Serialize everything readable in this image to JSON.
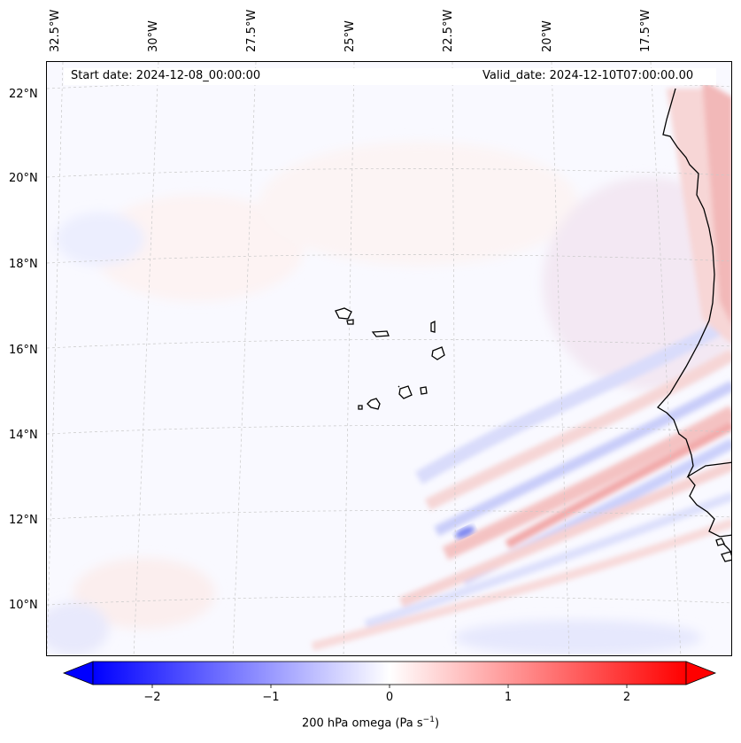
{
  "header": {
    "start_date": "Start date: 2024-12-08_00:00:00",
    "valid_date": "Valid_date: 2024-12-10T07:00:00.00"
  },
  "map": {
    "projection": "conic",
    "longitude_labels": [
      "32.5°W",
      "30°W",
      "27.5°W",
      "25°W",
      "22.5°W",
      "20°W",
      "17.5°W"
    ],
    "latitude_labels": [
      "22°N",
      "20°N",
      "18°N",
      "16°N",
      "14°N",
      "12°N",
      "10°N"
    ],
    "features": [
      "Cape Verde islands",
      "West African coastline (Senegal, Gambia, Guinea-Bissau)"
    ],
    "field": "200 hPa omega"
  },
  "colorbar": {
    "title_prefix": "200 hPa omega (Pa s",
    "title_exponent": "−1",
    "title_suffix": ")",
    "ticks": [
      "−2",
      "−1",
      "0",
      "1",
      "2"
    ],
    "tick_values": [
      -2,
      -1,
      0,
      1,
      2
    ],
    "range": [
      -2.6,
      2.6
    ],
    "low_color": "#0000ff",
    "mid_color": "#ffffff",
    "high_color": "#ff0000",
    "extend": "both"
  }
}
